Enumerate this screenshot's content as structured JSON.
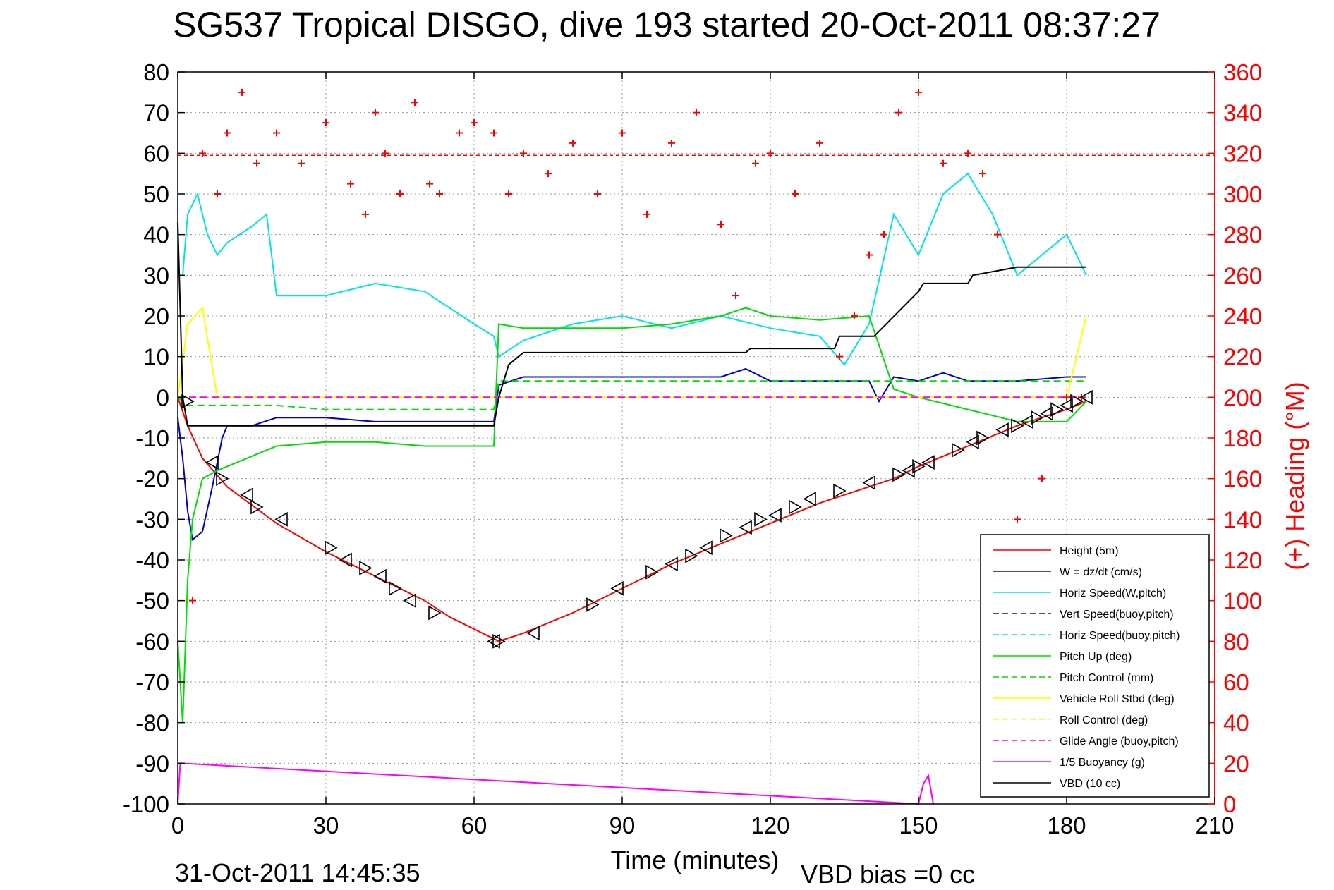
{
  "chart_data": {
    "type": "line",
    "title": "SG537 Tropical DISGO, dive 193 started 20-Oct-2011 08:37:27",
    "xlabel": "Time (minutes)",
    "ylabel": "",
    "y2label": "(+) Heading (°M)",
    "xlim": [
      0,
      210
    ],
    "ylim": [
      -100,
      80
    ],
    "y2lim": [
      0,
      360
    ],
    "xticks": [
      "0",
      "30",
      "60",
      "90",
      "120",
      "150",
      "180",
      "210"
    ],
    "yticks": [
      "80",
      "70",
      "60",
      "50",
      "40",
      "30",
      "20",
      "10",
      "0",
      "-10",
      "-20",
      "-30",
      "-40",
      "-50",
      "-60",
      "-70",
      "-80",
      "-90",
      "-100"
    ],
    "y2ticks": [
      "360",
      "340",
      "320",
      "300",
      "280",
      "260",
      "240",
      "220",
      "200",
      "180",
      "160",
      "140",
      "120",
      "100",
      "80",
      "60",
      "40",
      "20",
      "0"
    ],
    "grid": true,
    "legend_position": "bottom-right",
    "footer_left": "31-Oct-2011 14:45:35",
    "footer_right": "VBD bias =0 cc",
    "heading_target": 319,
    "series": [
      {
        "name": "Height (5m)",
        "color": "#ff0000",
        "style": "solid",
        "x": [
          0,
          2,
          5,
          10,
          20,
          30,
          40,
          50,
          55,
          60,
          65,
          70,
          80,
          90,
          100,
          110,
          120,
          130,
          140,
          145,
          150,
          160,
          170,
          180,
          184
        ],
        "y": [
          0,
          -7,
          -15,
          -22,
          -31,
          -38,
          -44,
          -50,
          -54,
          -57,
          -60,
          -58,
          -53,
          -47,
          -41,
          -36,
          -31,
          -26,
          -22,
          -20,
          -17,
          -12,
          -7,
          -3,
          -1
        ]
      },
      {
        "name": "W = dz/dt (cm/s)",
        "color": "#0000cc",
        "style": "solid",
        "x": [
          0,
          1,
          2,
          3,
          5,
          7,
          9,
          10,
          15,
          20,
          30,
          40,
          50,
          60,
          64,
          65,
          70,
          80,
          90,
          100,
          110,
          115,
          120,
          130,
          140,
          142,
          145,
          150,
          155,
          160,
          170,
          180,
          184
        ],
        "y": [
          -5,
          -15,
          -28,
          -35,
          -33,
          -22,
          -10,
          -7,
          -7,
          -5,
          -5,
          -6,
          -6,
          -6,
          -6,
          3,
          5,
          5,
          5,
          5,
          5,
          7,
          4,
          4,
          4,
          -1,
          5,
          4,
          6,
          4,
          4,
          5,
          5
        ]
      },
      {
        "name": "Horiz Speed(W,pitch)",
        "color": "#00e5e5",
        "style": "solid",
        "x": [
          1,
          2,
          4,
          6,
          8,
          10,
          15,
          18,
          20,
          30,
          40,
          50,
          60,
          64,
          65,
          70,
          80,
          90,
          100,
          110,
          120,
          130,
          135,
          140,
          145,
          150,
          155,
          160,
          165,
          170,
          180,
          184
        ],
        "y": [
          30,
          45,
          50,
          40,
          35,
          38,
          42,
          45,
          25,
          25,
          28,
          26,
          18,
          15,
          10,
          14,
          18,
          20,
          17,
          20,
          17,
          15,
          8,
          18,
          45,
          35,
          50,
          55,
          45,
          30,
          40,
          30
        ]
      },
      {
        "name": "Vert Speed(buoy,pitch)",
        "color": "#0000ff",
        "style": "dashed",
        "x": [],
        "y": []
      },
      {
        "name": "Horiz Speed(buoy,pitch)",
        "color": "#00e5e5",
        "style": "dashed",
        "x": [],
        "y": []
      },
      {
        "name": "Pitch Up (deg)",
        "color": "#00dd00",
        "style": "solid",
        "x": [
          0,
          1,
          2,
          3,
          5,
          8,
          10,
          20,
          30,
          40,
          50,
          60,
          64,
          65,
          70,
          80,
          90,
          100,
          110,
          115,
          120,
          130,
          140,
          145,
          150,
          160,
          170,
          180,
          184
        ],
        "y": [
          -60,
          -80,
          -45,
          -30,
          -20,
          -18,
          -17,
          -12,
          -11,
          -11,
          -12,
          -12,
          -12,
          18,
          17,
          17,
          17,
          18,
          20,
          22,
          20,
          19,
          20,
          2,
          0,
          -3,
          -6,
          -6,
          -1
        ]
      },
      {
        "name": "Pitch Control (mm)",
        "color": "#00dd00",
        "style": "dashed",
        "x": [
          0,
          2,
          10,
          20,
          30,
          40,
          50,
          60,
          64,
          65,
          70,
          80,
          90,
          100,
          110,
          120,
          130,
          140,
          150,
          160,
          170,
          180,
          184
        ],
        "y": [
          0,
          -2,
          -2,
          -2,
          -3,
          -3,
          -3,
          -3,
          -3,
          4,
          4,
          4,
          4,
          4,
          4,
          4,
          4,
          4,
          4,
          4,
          4,
          4,
          4
        ]
      },
      {
        "name": "Vehicle Roll Stbd (deg)",
        "color": "#ffff00",
        "style": "solid",
        "x": [
          0,
          2,
          5,
          8,
          10,
          20,
          30,
          40,
          50,
          60,
          65,
          70,
          80,
          90,
          100,
          110,
          120,
          130,
          140,
          150,
          160,
          170,
          180,
          184
        ],
        "y": [
          0,
          18,
          22,
          0,
          0,
          0,
          0,
          0,
          0,
          0,
          0,
          0,
          0,
          0,
          0,
          0,
          0,
          0,
          0,
          0,
          0,
          0,
          0,
          20
        ]
      },
      {
        "name": "Roll Control (deg)",
        "color": "#ffff00",
        "style": "dashed",
        "x": [
          0,
          10,
          20,
          30,
          40,
          50,
          60,
          70,
          80,
          90,
          100,
          110,
          120,
          130,
          140,
          150,
          160,
          170,
          180,
          184
        ],
        "y": [
          0,
          0,
          0,
          0,
          0,
          0,
          0,
          0,
          0,
          0,
          0,
          0,
          0,
          0,
          0,
          0,
          0,
          0,
          0,
          0
        ]
      },
      {
        "name": "Glide Angle (buoy,pitch)",
        "color": "#ff00ff",
        "style": "dashed",
        "x": [
          0,
          184
        ],
        "y": [
          0,
          0
        ]
      },
      {
        "name": "1/5 Buoyancy (g)",
        "color": "#ff00ff",
        "style": "solid",
        "x": [
          0,
          0.5,
          150,
          151,
          152,
          153
        ],
        "y": [
          -100,
          -90,
          -100,
          -95,
          -93,
          -100
        ]
      },
      {
        "name": "VBD (10 cc)",
        "color": "#000000",
        "style": "solid",
        "x": [
          0,
          1,
          2,
          64,
          65,
          67,
          70,
          80,
          90,
          100,
          110,
          115,
          116,
          120,
          130,
          133,
          134,
          140,
          141,
          150,
          151,
          160,
          161,
          170,
          184
        ],
        "y": [
          43,
          0,
          -7,
          -7,
          0,
          8,
          11,
          11,
          11,
          11,
          11,
          11,
          12,
          12,
          12,
          12,
          15,
          15,
          15,
          26,
          28,
          28,
          30,
          32,
          32
        ]
      },
      {
        "name": "Heading",
        "axis": "right",
        "color": "#ff0000",
        "style": "markers",
        "x": [
          3,
          5,
          8,
          10,
          13,
          16,
          20,
          25,
          30,
          35,
          38,
          40,
          42,
          45,
          48,
          51,
          53,
          57,
          60,
          64,
          67,
          70,
          75,
          80,
          85,
          90,
          95,
          100,
          105,
          110,
          113,
          117,
          120,
          125,
          130,
          134,
          137,
          140,
          143,
          146,
          150,
          155,
          160,
          163,
          166,
          170,
          175,
          180,
          183
        ],
        "y": [
          100,
          320,
          300,
          330,
          350,
          315,
          330,
          315,
          335,
          305,
          290,
          340,
          320,
          300,
          345,
          305,
          300,
          330,
          335,
          330,
          300,
          320,
          310,
          325,
          300,
          330,
          290,
          325,
          340,
          285,
          250,
          315,
          320,
          300,
          325,
          220,
          240,
          270,
          280,
          340,
          350,
          315,
          320,
          310,
          280,
          140,
          160,
          200,
          200
        ]
      }
    ],
    "markers": {
      "symbol": "triangle",
      "x": [
        2,
        7,
        9,
        14,
        16,
        21,
        31,
        34,
        38,
        41,
        44,
        47,
        52,
        64,
        65,
        72,
        84,
        89,
        96,
        100,
        104,
        107,
        111,
        115,
        118,
        121,
        125,
        128,
        134,
        140,
        146,
        148,
        150,
        152,
        158,
        161,
        163,
        167,
        170,
        172,
        174,
        176,
        178,
        180,
        182,
        184
      ],
      "y": [
        -1,
        -16,
        -20,
        -24,
        -27,
        -30,
        -37,
        -40,
        -42,
        -44,
        -47,
        -50,
        -53,
        -60,
        -60,
        -58,
        -51,
        -47,
        -43,
        -41,
        -39,
        -37,
        -34,
        -32,
        -30,
        -29,
        -27,
        -25,
        -23,
        -21,
        -19,
        -18,
        -17,
        -16,
        -13,
        -11,
        -10,
        -8,
        -7,
        -6,
        -5,
        -4,
        -3,
        -2,
        -1,
        0
      ]
    }
  }
}
